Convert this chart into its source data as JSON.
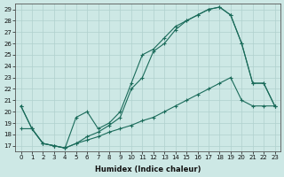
{
  "xlabel": "Humidex (Indice chaleur)",
  "background_color": "#cde8e5",
  "grid_color": "#b0d0ce",
  "line_color": "#1a6b5a",
  "xlim": [
    -0.5,
    23.5
  ],
  "ylim": [
    16.5,
    29.5
  ],
  "yticks": [
    17,
    18,
    19,
    20,
    21,
    22,
    23,
    24,
    25,
    26,
    27,
    28,
    29
  ],
  "xticks": [
    0,
    1,
    2,
    3,
    4,
    5,
    6,
    7,
    8,
    9,
    10,
    11,
    12,
    13,
    14,
    15,
    16,
    17,
    18,
    19,
    20,
    21,
    22,
    23
  ],
  "series": [
    {
      "x": [
        0,
        1,
        2,
        3,
        4,
        5,
        6,
        7,
        8,
        9,
        10,
        11,
        12,
        13,
        14,
        15,
        16,
        17,
        18,
        19,
        20,
        21,
        22,
        23
      ],
      "y": [
        20.5,
        18.5,
        17.2,
        17.0,
        16.8,
        19.5,
        20.0,
        18.5,
        19.0,
        20.0,
        22.5,
        25.0,
        25.5,
        26.5,
        27.5,
        28.0,
        28.5,
        29.0,
        29.2,
        28.5,
        26.0,
        22.5,
        22.5,
        20.5
      ]
    },
    {
      "x": [
        0,
        1,
        2,
        3,
        4,
        5,
        6,
        7,
        8,
        9,
        10,
        11,
        12,
        13,
        14,
        15,
        16,
        17,
        18,
        19,
        20,
        21,
        22,
        23
      ],
      "y": [
        20.5,
        18.5,
        17.2,
        17.0,
        16.8,
        17.2,
        17.8,
        18.2,
        18.8,
        19.5,
        22.0,
        23.0,
        25.3,
        26.0,
        27.2,
        28.0,
        28.5,
        29.0,
        29.2,
        28.5,
        26.0,
        22.5,
        22.5,
        20.5
      ]
    },
    {
      "x": [
        0,
        1,
        2,
        3,
        4,
        5,
        6,
        7,
        8,
        9,
        10,
        11,
        12,
        13,
        14,
        15,
        16,
        17,
        18,
        19,
        20,
        21,
        22,
        23
      ],
      "y": [
        18.5,
        18.5,
        17.2,
        17.0,
        16.8,
        17.2,
        17.5,
        17.8,
        18.2,
        18.5,
        18.8,
        19.2,
        19.5,
        20.0,
        20.5,
        21.0,
        21.5,
        22.0,
        22.5,
        23.0,
        21.0,
        20.5,
        20.5,
        20.5
      ]
    }
  ]
}
